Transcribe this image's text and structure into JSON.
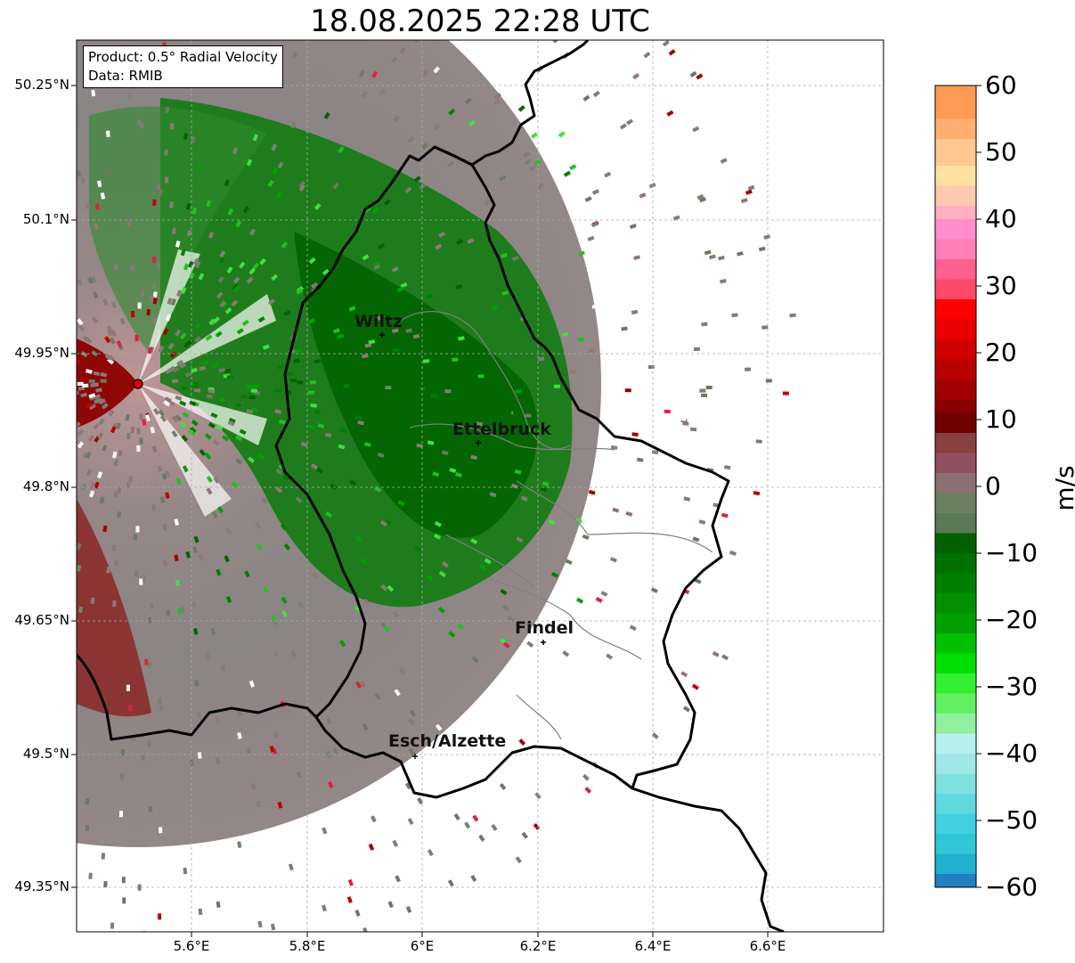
{
  "title": "18.08.2025 22:28 UTC",
  "info": {
    "product": "Product: 0.5° Radial Velocity",
    "data": "Data: RMIB"
  },
  "axes": {
    "lat_ticks": [
      "50.25°N",
      "50.1°N",
      "49.95°N",
      "49.8°N",
      "49.65°N",
      "49.5°N",
      "49.35°N"
    ],
    "lon_ticks": [
      "5.6°E",
      "5.8°E",
      "6°E",
      "6.2°E",
      "6.4°E",
      "6.6°E"
    ]
  },
  "colorbar": {
    "unit": "m/s",
    "ticks": [
      "60",
      "50",
      "40",
      "30",
      "20",
      "10",
      "0",
      "−10",
      "−20",
      "−30",
      "−40",
      "−50",
      "−60"
    ],
    "range": [
      -60,
      60
    ]
  },
  "cities": [
    {
      "name": "Wiltz"
    },
    {
      "name": "Ettelbruck"
    },
    {
      "name": "Findel"
    },
    {
      "name": "Esch/Alzette"
    }
  ],
  "colors": {
    "approaching_green": "#007000",
    "receding_red": "#8b0000",
    "near_zero_grey": "#867373",
    "border": "#000000",
    "radar_site": "#e00000"
  }
}
